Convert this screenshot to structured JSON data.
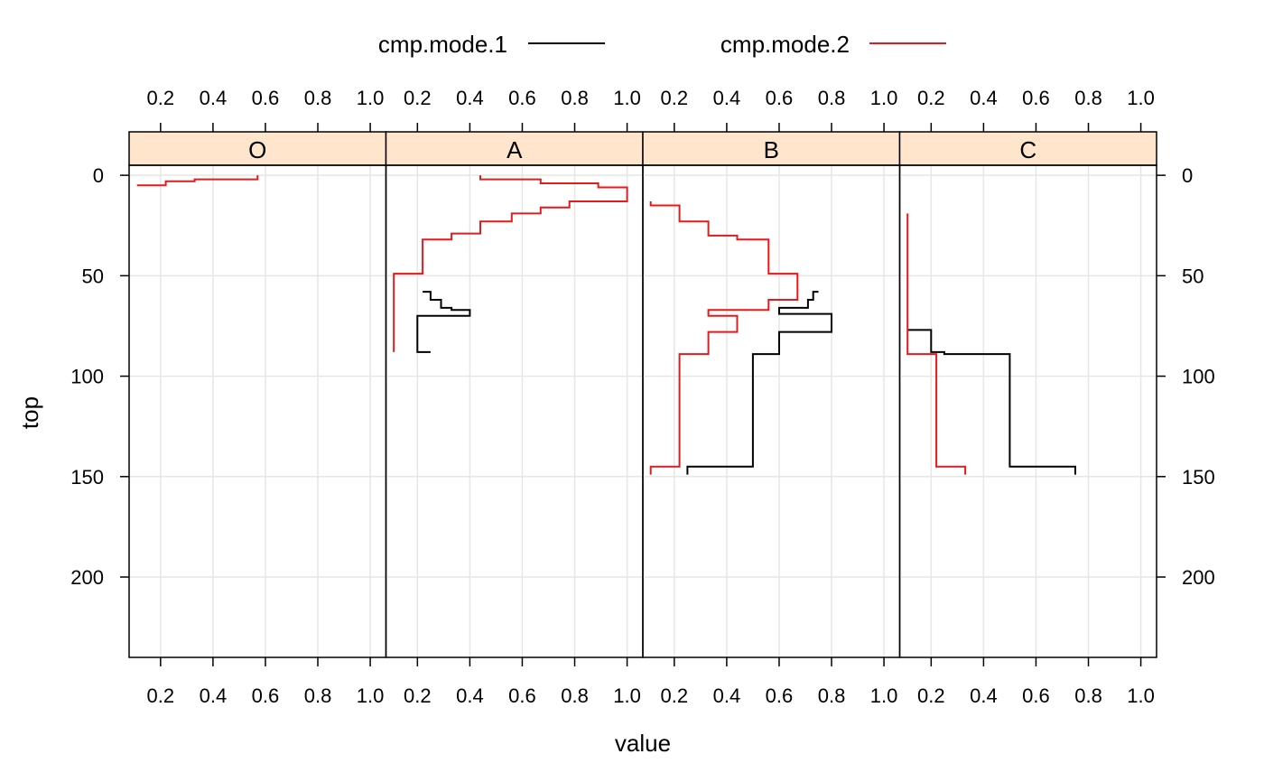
{
  "chart_data": {
    "type": "line",
    "xlabel": "value",
    "ylabel": "top",
    "xlim": [
      0.08,
      1.06
    ],
    "ylim": [
      240,
      -5
    ],
    "x_ticks": [
      "0.2",
      "0.4",
      "0.6",
      "0.8",
      "1.0"
    ],
    "x_tick_values": [
      0.2,
      0.4,
      0.6,
      0.8,
      1.0
    ],
    "y_ticks": [
      "0",
      "50",
      "100",
      "150",
      "200"
    ],
    "y_tick_values": [
      0,
      50,
      100,
      150,
      200
    ],
    "grid": true,
    "legend_position": "top",
    "strip_color": "#ffe5cc",
    "grid_color": "#e6e6e6",
    "series": [
      {
        "name": "cmp.mode.1",
        "color": "#000000"
      },
      {
        "name": "cmp.mode.2",
        "color": "#e41a1c"
      }
    ],
    "panels": [
      {
        "label": "O",
        "lines": {
          "cmp.mode.1": [],
          "cmp.mode.2": [
            [
              0.57,
              0
            ],
            [
              0.57,
              2
            ],
            [
              0.33,
              2
            ],
            [
              0.33,
              3
            ],
            [
              0.22,
              3
            ],
            [
              0.22,
              5
            ],
            [
              0.11,
              5
            ]
          ]
        }
      },
      {
        "label": "A",
        "lines": {
          "cmp.mode.1": [
            [
              0.22,
              58
            ],
            [
              0.22,
              58
            ],
            [
              0.25,
              58
            ],
            [
              0.25,
              62
            ],
            [
              0.29,
              62
            ],
            [
              0.29,
              66
            ],
            [
              0.33,
              66
            ],
            [
              0.33,
              67
            ],
            [
              0.4,
              67
            ],
            [
              0.4,
              70
            ],
            [
              0.2,
              70
            ],
            [
              0.2,
              88
            ],
            [
              0.25,
              88
            ]
          ],
          "cmp.mode.2": [
            [
              0.44,
              0
            ],
            [
              0.44,
              2
            ],
            [
              0.67,
              2
            ],
            [
              0.67,
              4
            ],
            [
              0.89,
              4
            ],
            [
              0.89,
              6
            ],
            [
              1.0,
              6
            ],
            [
              1.0,
              13
            ],
            [
              0.78,
              13
            ],
            [
              0.78,
              16
            ],
            [
              0.67,
              16
            ],
            [
              0.67,
              19
            ],
            [
              0.56,
              19
            ],
            [
              0.56,
              23
            ],
            [
              0.44,
              23
            ],
            [
              0.44,
              29
            ],
            [
              0.33,
              29
            ],
            [
              0.33,
              32
            ],
            [
              0.22,
              32
            ],
            [
              0.22,
              49
            ],
            [
              0.11,
              49
            ],
            [
              0.11,
              70
            ],
            [
              0.11,
              88
            ]
          ]
        }
      },
      {
        "label": "B",
        "lines": {
          "cmp.mode.1": [
            [
              0.75,
              58
            ],
            [
              0.75,
              58
            ],
            [
              0.73,
              58
            ],
            [
              0.73,
              62
            ],
            [
              0.71,
              62
            ],
            [
              0.71,
              66
            ],
            [
              0.6,
              66
            ],
            [
              0.6,
              69
            ],
            [
              0.8,
              69
            ],
            [
              0.8,
              78
            ],
            [
              0.6,
              78
            ],
            [
              0.6,
              89
            ],
            [
              0.5,
              89
            ],
            [
              0.5,
              145
            ],
            [
              0.25,
              145
            ],
            [
              0.25,
              149
            ]
          ],
          "cmp.mode.2": [
            [
              0.11,
              13
            ],
            [
              0.11,
              15
            ],
            [
              0.22,
              15
            ],
            [
              0.22,
              23
            ],
            [
              0.33,
              23
            ],
            [
              0.33,
              30
            ],
            [
              0.44,
              30
            ],
            [
              0.44,
              32
            ],
            [
              0.56,
              32
            ],
            [
              0.56,
              49
            ],
            [
              0.67,
              49
            ],
            [
              0.67,
              62
            ],
            [
              0.56,
              62
            ],
            [
              0.56,
              67
            ],
            [
              0.33,
              67
            ],
            [
              0.33,
              70
            ],
            [
              0.44,
              70
            ],
            [
              0.44,
              78
            ],
            [
              0.33,
              78
            ],
            [
              0.33,
              89
            ],
            [
              0.22,
              89
            ],
            [
              0.22,
              145
            ],
            [
              0.11,
              145
            ],
            [
              0.11,
              149
            ]
          ]
        }
      },
      {
        "label": "C",
        "lines": {
          "cmp.mode.1": [
            [
              0.11,
              77
            ],
            [
              0.11,
              77
            ],
            [
              0.2,
              77
            ],
            [
              0.2,
              88
            ],
            [
              0.25,
              88
            ],
            [
              0.25,
              89
            ],
            [
              0.5,
              89
            ],
            [
              0.5,
              145
            ],
            [
              0.75,
              145
            ],
            [
              0.75,
              149
            ]
          ],
          "cmp.mode.2": [
            [
              0.11,
              19
            ],
            [
              0.11,
              89
            ],
            [
              0.22,
              89
            ],
            [
              0.22,
              145
            ],
            [
              0.33,
              145
            ],
            [
              0.33,
              149
            ]
          ]
        }
      }
    ]
  }
}
